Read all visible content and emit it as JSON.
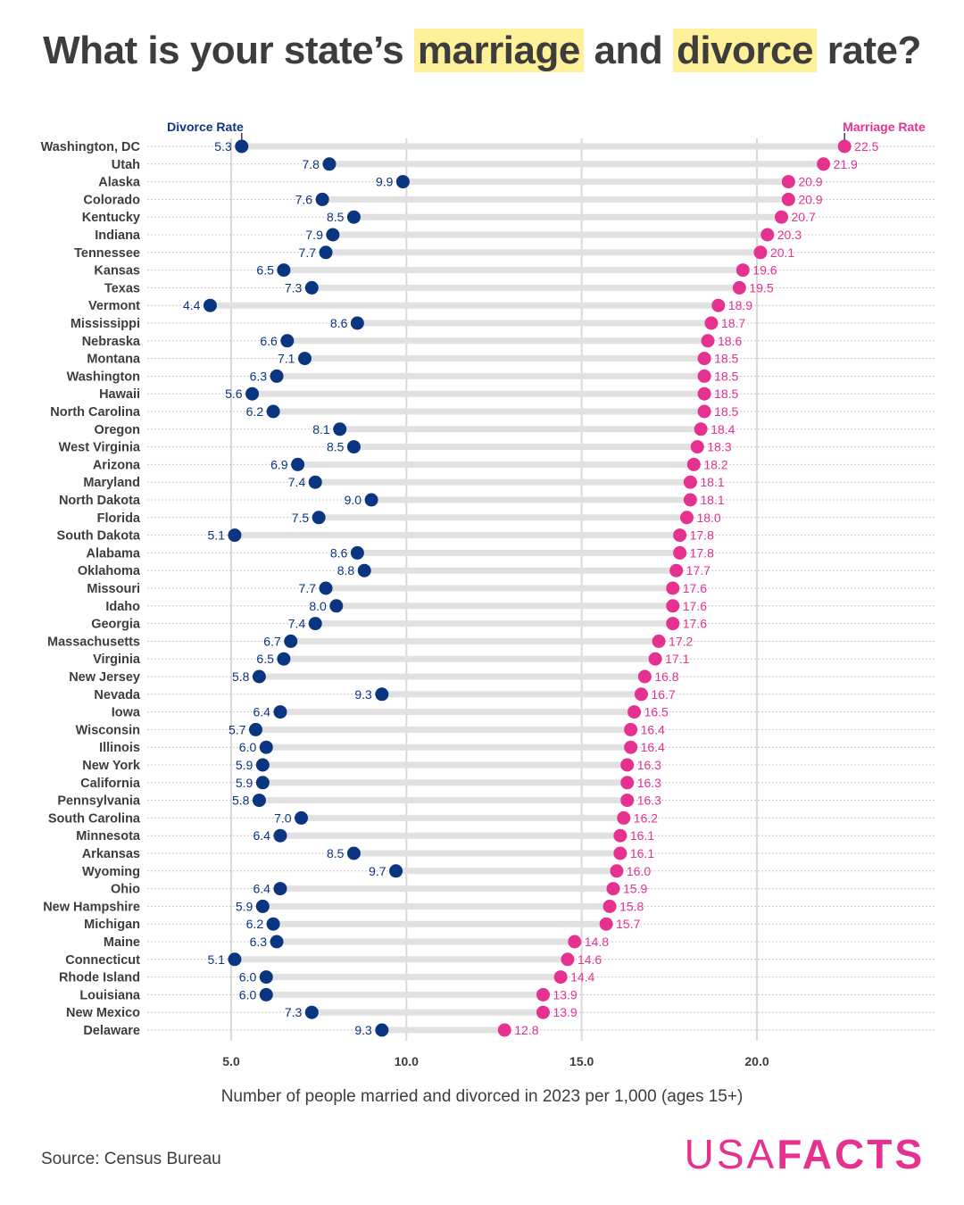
{
  "title": {
    "prefix": "What is your state’s ",
    "hl1": "marriage",
    "middle": " and ",
    "hl2": "divorce",
    "suffix": " rate?"
  },
  "colors": {
    "divorce": "#0a3580",
    "marriage": "#e5318f",
    "highlight": "#fff09a",
    "text": "#3d3d3d"
  },
  "footer": {
    "source": "Source: Census Bureau",
    "logo_light": "USA",
    "logo_bold": "FACTS"
  },
  "chart_data": {
    "type": "dot-range",
    "title": "What is your state’s marriage and divorce rate?",
    "xlabel": "Number of people married and divorced in 2023 per 1,000 (ages 15+)",
    "ylabel": "",
    "xlim": [
      2.5,
      25
    ],
    "xticks": [
      5,
      10,
      15,
      20
    ],
    "xtick_labels": [
      "5.0",
      "10.0",
      "15.0",
      "20.0"
    ],
    "grid": true,
    "legend": [
      {
        "name": "Divorce Rate",
        "placement": "top-left"
      },
      {
        "name": "Marriage Rate",
        "placement": "top-right"
      }
    ],
    "categories": [
      "Washington, DC",
      "Utah",
      "Alaska",
      "Colorado",
      "Kentucky",
      "Indiana",
      "Tennessee",
      "Kansas",
      "Texas",
      "Vermont",
      "Mississippi",
      "Nebraska",
      "Montana",
      "Washington",
      "Hawaii",
      "North Carolina",
      "Oregon",
      "West Virginia",
      "Arizona",
      "Maryland",
      "North Dakota",
      "Florida",
      "South Dakota",
      "Alabama",
      "Oklahoma",
      "Missouri",
      "Idaho",
      "Georgia",
      "Massachusetts",
      "Virginia",
      "New Jersey",
      "Nevada",
      "Iowa",
      "Wisconsin",
      "Illinois",
      "New York",
      "California",
      "Pennsylvania",
      "South Carolina",
      "Minnesota",
      "Arkansas",
      "Wyoming",
      "Ohio",
      "New Hampshire",
      "Michigan",
      "Maine",
      "Connecticut",
      "Rhode Island",
      "Louisiana",
      "New Mexico",
      "Delaware"
    ],
    "series": [
      {
        "name": "Divorce Rate",
        "values": [
          5.3,
          7.8,
          9.9,
          7.6,
          8.5,
          7.9,
          7.7,
          6.5,
          7.3,
          4.4,
          8.6,
          6.6,
          7.1,
          6.3,
          5.6,
          6.2,
          8.1,
          8.5,
          6.9,
          7.4,
          9.0,
          7.5,
          5.1,
          8.6,
          8.8,
          7.7,
          8.0,
          7.4,
          6.7,
          6.5,
          5.8,
          9.3,
          6.4,
          5.7,
          6.0,
          5.9,
          5.9,
          5.8,
          7.0,
          6.4,
          8.5,
          9.7,
          6.4,
          5.9,
          6.2,
          6.3,
          5.1,
          6.0,
          6.0,
          7.3,
          9.3
        ]
      },
      {
        "name": "Marriage Rate",
        "values": [
          22.5,
          21.9,
          20.9,
          20.9,
          20.7,
          20.3,
          20.1,
          19.6,
          19.5,
          18.9,
          18.7,
          18.6,
          18.5,
          18.5,
          18.5,
          18.5,
          18.4,
          18.3,
          18.2,
          18.1,
          18.1,
          18.0,
          17.8,
          17.8,
          17.7,
          17.6,
          17.6,
          17.6,
          17.2,
          17.1,
          16.8,
          16.7,
          16.5,
          16.4,
          16.4,
          16.3,
          16.3,
          16.3,
          16.2,
          16.1,
          16.1,
          16.0,
          15.9,
          15.8,
          15.7,
          14.8,
          14.6,
          14.4,
          13.9,
          13.9,
          12.8
        ]
      }
    ]
  }
}
